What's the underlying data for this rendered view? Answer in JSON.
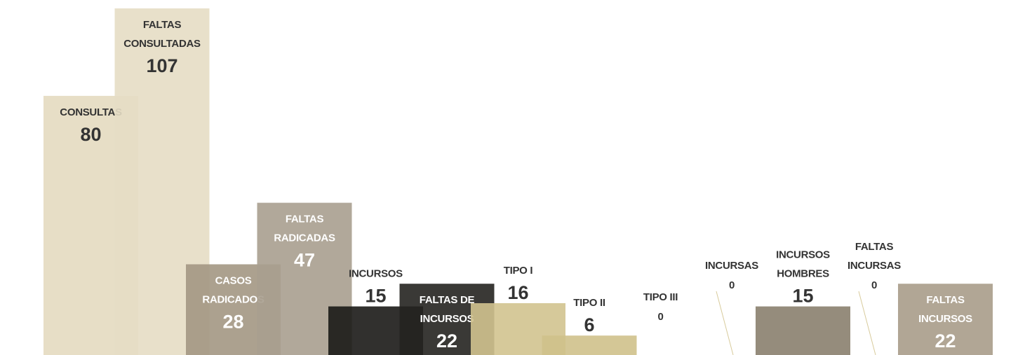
{
  "chart_data": {
    "type": "bar",
    "categories": [
      "CONSULTAS",
      "FALTAS CONSULTADAS",
      "CASOS RADICADOS",
      "FALTAS RADICADAS",
      "INCURSOS",
      "FALTAS DE INCURSOS",
      "TIPO I",
      "TIPO II",
      "TIPO III",
      "INCURSAS",
      "INCURSOS HOMBRES",
      "FALTAS INCURSAS",
      "FALTAS INCURSOS"
    ],
    "values": [
      80,
      107,
      28,
      47,
      15,
      22,
      16,
      6,
      0,
      0,
      15,
      0,
      22
    ],
    "colors": [
      "#e4dac0",
      "#e6ddc4",
      "#a39783",
      "#a99f8f",
      "#1b1917",
      "#252320",
      "#d2c38f",
      "#cfc18b",
      "#cfc18b",
      "#cfc18b",
      "#8a7f6e",
      "#cfc18b",
      "#a89c89"
    ],
    "ylim": [
      0,
      107
    ]
  }
}
